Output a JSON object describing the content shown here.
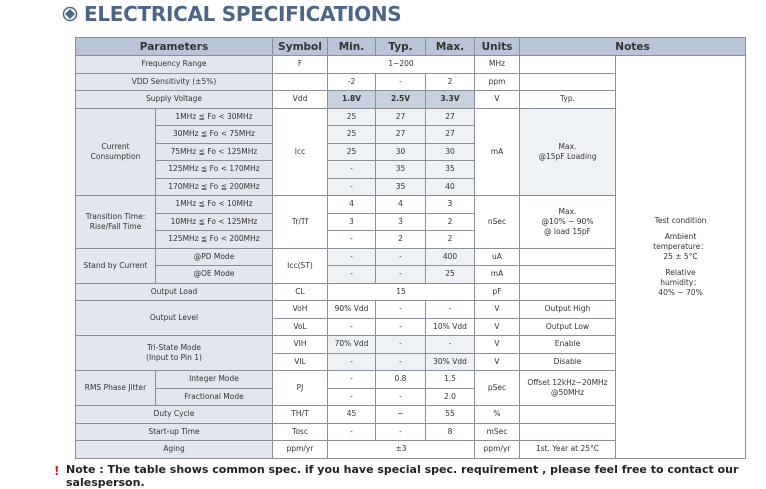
{
  "header": {
    "title": "ELECTRICAL SPECIFICATIONS"
  },
  "table": {
    "columns": [
      "Parameters",
      "Symbol",
      "Min.",
      "Typ.",
      "Max.",
      "Units",
      "Notes"
    ],
    "rows": [
      [
        "Frequency Range",
        "F",
        "1~200",
        "MHz"
      ],
      [
        "VDD Sensitivity (±5%)",
        "-2",
        "-",
        "2",
        "ppm"
      ],
      [
        "Supply Voltage",
        "Vdd",
        "1.8V",
        "2.5V",
        "3.3V",
        "V",
        "Typ."
      ],
      [
        "Current\nConsumption",
        "1MHz ≦ Fo < 30MHz",
        "Icc",
        "25",
        "27",
        "27",
        "mA",
        "Max.\n@15pF Loading"
      ],
      [
        "30MHz ≦ Fo < 75MHz",
        "25",
        "27",
        "27"
      ],
      [
        "75MHz ≦ Fo < 125MHz",
        "25",
        "30",
        "30"
      ],
      [
        "125MHz ≦ Fo < 170MHz",
        "-",
        "35",
        "35"
      ],
      [
        "170MHz ≦ Fo ≦ 200MHz",
        "-",
        "35",
        "40"
      ],
      [
        "Transition Time:\nRise/Fall Time",
        "1MHz ≦ Fo < 10MHz",
        "Tr/Tf",
        "4",
        "4",
        "3",
        "nSec",
        "Max.\n@10% ~ 90%\n@ load 15pF"
      ],
      [
        "10MHz ≦ Fo < 125MHz",
        "3",
        "3",
        "2"
      ],
      [
        "125MHz ≦ Fo < 200MHz",
        "-",
        "2",
        "2"
      ],
      [
        "Stand by Current",
        "@PD Mode",
        "Icc(ST)",
        "-",
        "-",
        "400",
        "uA"
      ],
      [
        "@OE Mode",
        "-",
        "-",
        "25",
        "mA"
      ],
      [
        "Output Load",
        "CL",
        "15",
        "pF"
      ],
      [
        "Output Level",
        "VoH",
        "90% Vdd",
        "-",
        "-",
        "V",
        "Output High"
      ],
      [
        "VoL",
        "-",
        "-",
        "10% Vdd",
        "V",
        "Output Low"
      ],
      [
        "Tri-State Mode\n(Input to Pin 1)",
        "VIH",
        "70% Vdd",
        "-",
        "-",
        "V",
        "Enable"
      ],
      [
        "VIL",
        "-",
        "-",
        "30% Vdd",
        "V",
        "Disable"
      ],
      [
        "RMS Phase Jitter",
        "Integer Mode",
        "PJ",
        "-",
        "0.8",
        "1.5",
        "pSec",
        "Offset 12kHz~20MHz\n@50MHz"
      ],
      [
        "Fractional Mode",
        "-",
        "-",
        "2.0"
      ],
      [
        "Duty Cycle",
        "TH/T",
        "45",
        "~",
        "55",
        "%"
      ],
      [
        "Start-up Time",
        "Tosc",
        "-",
        "-",
        "8",
        "mSec"
      ],
      [
        "Aging",
        "ppm/yr",
        "±3",
        "ppm/yr",
        "1st. Year at 25°C"
      ]
    ],
    "test_condition": [
      "Test condition",
      "Ambient\ntemperature：\n25 ± 5°C",
      "Relative\nhumidity：\n40% ~ 70%"
    ]
  },
  "note": "Note : The table shows common spec. if you have special spec. requirement , please feel free to contact our salesperson."
}
